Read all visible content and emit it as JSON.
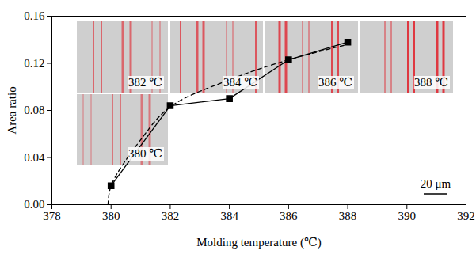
{
  "chart_data": {
    "type": "line",
    "x_label": "Molding temperature (℃)",
    "y_label": "Area ratio",
    "xlim": [
      378,
      392
    ],
    "xticks": [
      378,
      380,
      382,
      384,
      386,
      388,
      390,
      392
    ],
    "ylim": [
      0,
      0.16
    ],
    "yticks": [
      {
        "value": 0,
        "label": "0.00"
      },
      0.04,
      0.08,
      0.12,
      0.16
    ],
    "series": [
      {
        "x": [
          380,
          382,
          384,
          386,
          388
        ],
        "values": [
          0.016,
          0.084,
          0.09,
          0.123,
          0.138
        ],
        "color": "#000000",
        "marker": "square",
        "line_style": "solid"
      },
      {
        "x": [
          379.9,
          380,
          381,
          382,
          384,
          386,
          388
        ],
        "values": [
          0.0,
          0.016,
          0.055,
          0.083,
          0.106,
          0.123,
          0.136
        ],
        "color": "#000000",
        "marker": "none",
        "line_style": "dashed"
      }
    ],
    "annotations": [
      "380 ℃",
      "382 ℃",
      "384 ℃",
      "386 ℃",
      "388 ℃",
      "20 μm"
    ]
  }
}
